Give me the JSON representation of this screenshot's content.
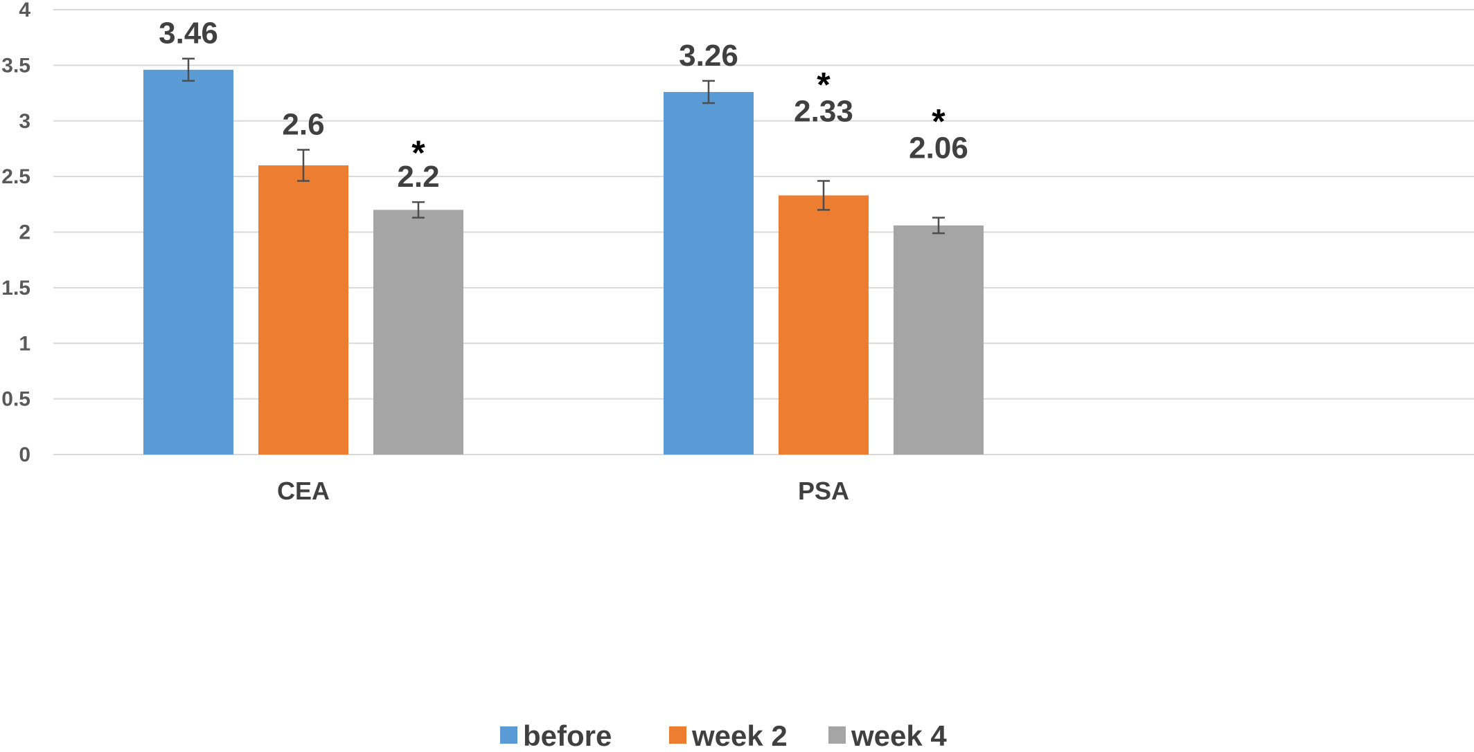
{
  "chart_data": {
    "type": "bar",
    "categories": [
      "CEA",
      "PSA"
    ],
    "series": [
      {
        "name": "before",
        "color": "#5b9bd5",
        "values": [
          3.46,
          3.26
        ],
        "errors": [
          0.1,
          0.1
        ],
        "labels": [
          "3.46",
          "3.26"
        ]
      },
      {
        "name": "week 2",
        "color": "#ed7d31",
        "values": [
          2.6,
          2.33
        ],
        "errors": [
          0.14,
          0.13
        ],
        "labels": [
          "2.6",
          "2.33"
        ]
      },
      {
        "name": "week 4",
        "color": "#a5a5a5",
        "values": [
          2.2,
          2.06
        ],
        "errors": [
          0.07,
          0.07
        ],
        "labels": [
          "2.2",
          "2.06"
        ]
      }
    ],
    "significance": [
      {
        "category": "CEA",
        "series": "week 4",
        "mark": "*"
      },
      {
        "category": "PSA",
        "series": "week 2",
        "mark": "*"
      },
      {
        "category": "PSA",
        "series": "week 4",
        "mark": "*"
      }
    ],
    "ylim": [
      0,
      4
    ],
    "yticks": [
      "0",
      "0.5",
      "1",
      "1.5",
      "2",
      "2.5",
      "3",
      "3.5",
      "4"
    ],
    "grid": true,
    "legend_position": "bottom"
  }
}
